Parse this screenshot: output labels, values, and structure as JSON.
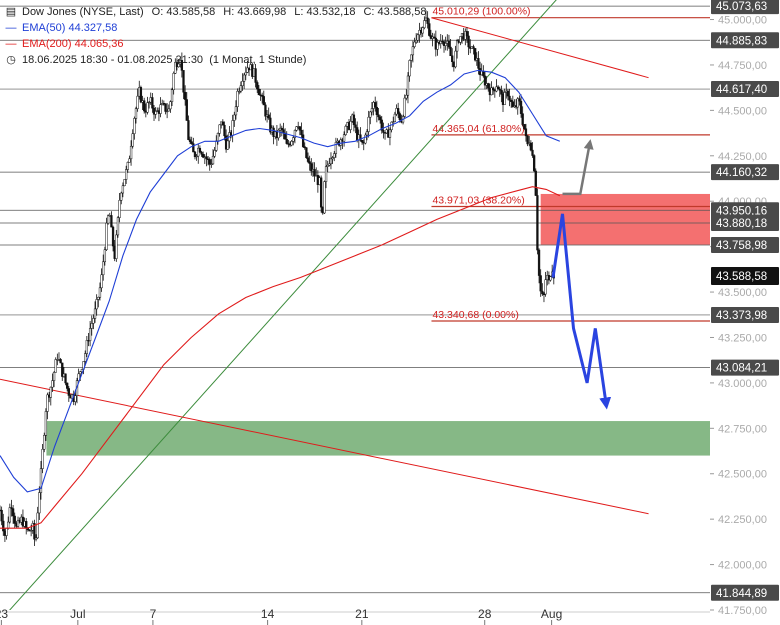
{
  "legend": {
    "symbol": "Dow Jones (NYSE, Last)",
    "ohlc_label_o": "O:",
    "open": "43.585,58",
    "ohlc_label_h": "H:",
    "high": "43.669,98",
    "ohlc_label_l": "L:",
    "low": "43.532,18",
    "ohlc_label_c": "C:",
    "close": "43.588,58",
    "ema50_label": "EMA(50)",
    "ema50_value": "44.327,58",
    "ema200_label": "EMA(200)",
    "ema200_value": "44.065,36",
    "range": "18.06.2025 18:30 - 01.08.2025 21:30",
    "interval": "(1 Monat, 1 Stunde)",
    "ema50_color": "#1f3fd6",
    "ema200_color": "#e01b1b"
  },
  "chart_data": {
    "type": "candlestick",
    "x_ticks": [
      {
        "label": "23",
        "pos": 1
      },
      {
        "label": "Jul",
        "pos": 57
      },
      {
        "label": "7",
        "pos": 112
      },
      {
        "label": "14",
        "pos": 196
      },
      {
        "label": "21",
        "pos": 265
      },
      {
        "label": "28",
        "pos": 355
      },
      {
        "label": "Aug",
        "pos": 404
      }
    ],
    "x_total": 520,
    "ylim": [
      41750,
      45080
    ],
    "y_ticks": [
      45000,
      44750,
      44500,
      44250,
      44000,
      43750,
      43500,
      43250,
      43000,
      42750,
      42500,
      42250,
      42000,
      41750
    ],
    "y_tick_labels": [
      "45.000,00",
      "44.750,00",
      "44.500,00",
      "44.250,00",
      "44.000,00",
      "43.750,00",
      "43.500,00",
      "43.250,00",
      "43.000,00",
      "42.750,00",
      "42.500,00",
      "42.250,00",
      "42.000,00",
      "41.750,00"
    ],
    "level_lines": [
      {
        "value": 45073.63,
        "label": "45.073,63"
      },
      {
        "value": 44885.83,
        "label": "44.885,83"
      },
      {
        "value": 44617.4,
        "label": "44.617,40"
      },
      {
        "value": 44160.32,
        "label": "44.160,32"
      },
      {
        "value": 43950.16,
        "label": "43.950,16"
      },
      {
        "value": 43880.18,
        "label": "43.880,18"
      },
      {
        "value": 43758.98,
        "label": "43.758,98"
      },
      {
        "value": 43373.98,
        "label": "43.373,98"
      },
      {
        "value": 43084.21,
        "label": "43.084,21"
      },
      {
        "value": 41844.89,
        "label": "41.844,89"
      }
    ],
    "current_price": {
      "value": 43588.58,
      "label": "43.588,58"
    },
    "fibonacci": [
      {
        "value": 45010.29,
        "label": "45.010,29 (100.00%)"
      },
      {
        "value": 44365.04,
        "label": "44.365,04 (61.80%)"
      },
      {
        "value": 43971.03,
        "label": "43.971,03 (38.20%)"
      },
      {
        "value": 43340.68,
        "label": "43.340,68 (0.00%)"
      }
    ],
    "zones": [
      {
        "name": "resistance",
        "y_top": 44040,
        "y_bottom": 43760,
        "x_start": 396,
        "color": "#f47070"
      },
      {
        "name": "support",
        "y_top": 42790,
        "y_bottom": 42600,
        "x_start": 34,
        "color": "#86b886"
      }
    ],
    "trendlines": [
      {
        "color": "#3c8c3c",
        "p1": [
          0,
          41690
        ],
        "p2": [
          410,
          45130
        ]
      },
      {
        "color": "#e01b1b",
        "p1": [
          0,
          43020
        ],
        "p2": [
          475,
          42280
        ]
      },
      {
        "color": "#e01b1b",
        "p1": [
          316,
          45010
        ],
        "p2": [
          475,
          44680
        ]
      }
    ],
    "close_path": [
      [
        0,
        42300
      ],
      [
        4,
        42150
      ],
      [
        8,
        42350
      ],
      [
        12,
        42200
      ],
      [
        16,
        42250
      ],
      [
        20,
        42180
      ],
      [
        24,
        42200
      ],
      [
        26,
        42100
      ],
      [
        28,
        42350
      ],
      [
        30,
        42500
      ],
      [
        32,
        42700
      ],
      [
        34,
        42900
      ],
      [
        38,
        43000
      ],
      [
        42,
        43150
      ],
      [
        46,
        43050
      ],
      [
        50,
        42950
      ],
      [
        54,
        42920
      ],
      [
        58,
        43050
      ],
      [
        62,
        43150
      ],
      [
        66,
        43300
      ],
      [
        70,
        43400
      ],
      [
        74,
        43550
      ],
      [
        76,
        43700
      ],
      [
        78,
        43850
      ],
      [
        80,
        43950
      ],
      [
        82,
        43800
      ],
      [
        84,
        43700
      ],
      [
        86,
        43850
      ],
      [
        88,
        44050
      ],
      [
        90,
        44100
      ],
      [
        94,
        44200
      ],
      [
        98,
        44450
      ],
      [
        102,
        44600
      ],
      [
        106,
        44500
      ],
      [
        110,
        44550
      ],
      [
        114,
        44480
      ],
      [
        118,
        44520
      ],
      [
        124,
        44500
      ],
      [
        128,
        44750
      ],
      [
        132,
        44800
      ],
      [
        134,
        44650
      ],
      [
        138,
        44350
      ],
      [
        142,
        44250
      ],
      [
        146,
        44300
      ],
      [
        150,
        44250
      ],
      [
        154,
        44200
      ],
      [
        158,
        44300
      ],
      [
        162,
        44450
      ],
      [
        166,
        44300
      ],
      [
        170,
        44400
      ],
      [
        174,
        44600
      ],
      [
        178,
        44700
      ],
      [
        182,
        44750
      ],
      [
        186,
        44700
      ],
      [
        190,
        44600
      ],
      [
        194,
        44500
      ],
      [
        198,
        44400
      ],
      [
        202,
        44350
      ],
      [
        206,
        44400
      ],
      [
        210,
        44300
      ],
      [
        214,
        44350
      ],
      [
        218,
        44450
      ],
      [
        222,
        44300
      ],
      [
        226,
        44200
      ],
      [
        230,
        44150
      ],
      [
        234,
        44100
      ],
      [
        236,
        43850
      ],
      [
        238,
        44150
      ],
      [
        242,
        44250
      ],
      [
        246,
        44300
      ],
      [
        250,
        44350
      ],
      [
        254,
        44400
      ],
      [
        258,
        44450
      ],
      [
        262,
        44350
      ],
      [
        266,
        44300
      ],
      [
        270,
        44450
      ],
      [
        274,
        44550
      ],
      [
        278,
        44450
      ],
      [
        282,
        44350
      ],
      [
        286,
        44400
      ],
      [
        290,
        44500
      ],
      [
        294,
        44450
      ],
      [
        298,
        44600
      ],
      [
        300,
        44750
      ],
      [
        304,
        44900
      ],
      [
        308,
        44950
      ],
      [
        312,
        45000
      ],
      [
        316,
        44900
      ],
      [
        320,
        44850
      ],
      [
        324,
        44900
      ],
      [
        328,
        44850
      ],
      [
        332,
        44750
      ],
      [
        336,
        44900
      ],
      [
        340,
        44920
      ],
      [
        344,
        44850
      ],
      [
        348,
        44800
      ],
      [
        352,
        44700
      ],
      [
        356,
        44650
      ],
      [
        360,
        44600
      ],
      [
        364,
        44650
      ],
      [
        368,
        44550
      ],
      [
        372,
        44600
      ],
      [
        376,
        44500
      ],
      [
        380,
        44550
      ],
      [
        384,
        44400
      ],
      [
        386,
        44300
      ],
      [
        388,
        44350
      ],
      [
        390,
        44250
      ],
      [
        392,
        44150
      ],
      [
        394,
        43650
      ],
      [
        396,
        43500
      ],
      [
        398,
        43450
      ],
      [
        400,
        43600
      ],
      [
        402,
        43550
      ],
      [
        404,
        43650
      ],
      [
        406,
        43588
      ]
    ],
    "ema50": [
      [
        0,
        42600
      ],
      [
        10,
        42480
      ],
      [
        20,
        42400
      ],
      [
        30,
        42420
      ],
      [
        40,
        42650
      ],
      [
        50,
        42850
      ],
      [
        60,
        43050
      ],
      [
        70,
        43250
      ],
      [
        80,
        43450
      ],
      [
        90,
        43700
      ],
      [
        100,
        43900
      ],
      [
        110,
        44050
      ],
      [
        120,
        44150
      ],
      [
        130,
        44250
      ],
      [
        140,
        44300
      ],
      [
        150,
        44330
      ],
      [
        160,
        44330
      ],
      [
        170,
        44360
      ],
      [
        180,
        44390
      ],
      [
        190,
        44400
      ],
      [
        200,
        44390
      ],
      [
        210,
        44370
      ],
      [
        220,
        44350
      ],
      [
        230,
        44320
      ],
      [
        240,
        44300
      ],
      [
        250,
        44320
      ],
      [
        260,
        44330
      ],
      [
        270,
        44360
      ],
      [
        280,
        44400
      ],
      [
        290,
        44430
      ],
      [
        300,
        44470
      ],
      [
        310,
        44550
      ],
      [
        320,
        44600
      ],
      [
        330,
        44640
      ],
      [
        340,
        44700
      ],
      [
        350,
        44720
      ],
      [
        360,
        44710
      ],
      [
        370,
        44680
      ],
      [
        380,
        44600
      ],
      [
        390,
        44480
      ],
      [
        400,
        44360
      ],
      [
        410,
        44330
      ]
    ],
    "ema200": [
      [
        0,
        42200
      ],
      [
        20,
        42200
      ],
      [
        30,
        42230
      ],
      [
        40,
        42320
      ],
      [
        60,
        42500
      ],
      [
        80,
        42700
      ],
      [
        100,
        42900
      ],
      [
        120,
        43100
      ],
      [
        140,
        43250
      ],
      [
        160,
        43380
      ],
      [
        180,
        43470
      ],
      [
        200,
        43530
      ],
      [
        220,
        43580
      ],
      [
        240,
        43640
      ],
      [
        260,
        43700
      ],
      [
        280,
        43760
      ],
      [
        300,
        43830
      ],
      [
        320,
        43900
      ],
      [
        340,
        43960
      ],
      [
        360,
        44020
      ],
      [
        380,
        44060
      ],
      [
        390,
        44080
      ],
      [
        400,
        44065
      ],
      [
        410,
        44030
      ]
    ],
    "scenarios": [
      {
        "color": "#2a44e0",
        "points": [
          [
            405,
            43580
          ],
          [
            412,
            43930
          ],
          [
            420,
            43300
          ],
          [
            430,
            43000
          ],
          [
            436,
            43300
          ],
          [
            444,
            42880
          ]
        ]
      },
      {
        "color": "#777777",
        "points": [
          [
            412,
            44040
          ],
          [
            425,
            44040
          ],
          [
            432,
            44320
          ]
        ]
      }
    ]
  }
}
